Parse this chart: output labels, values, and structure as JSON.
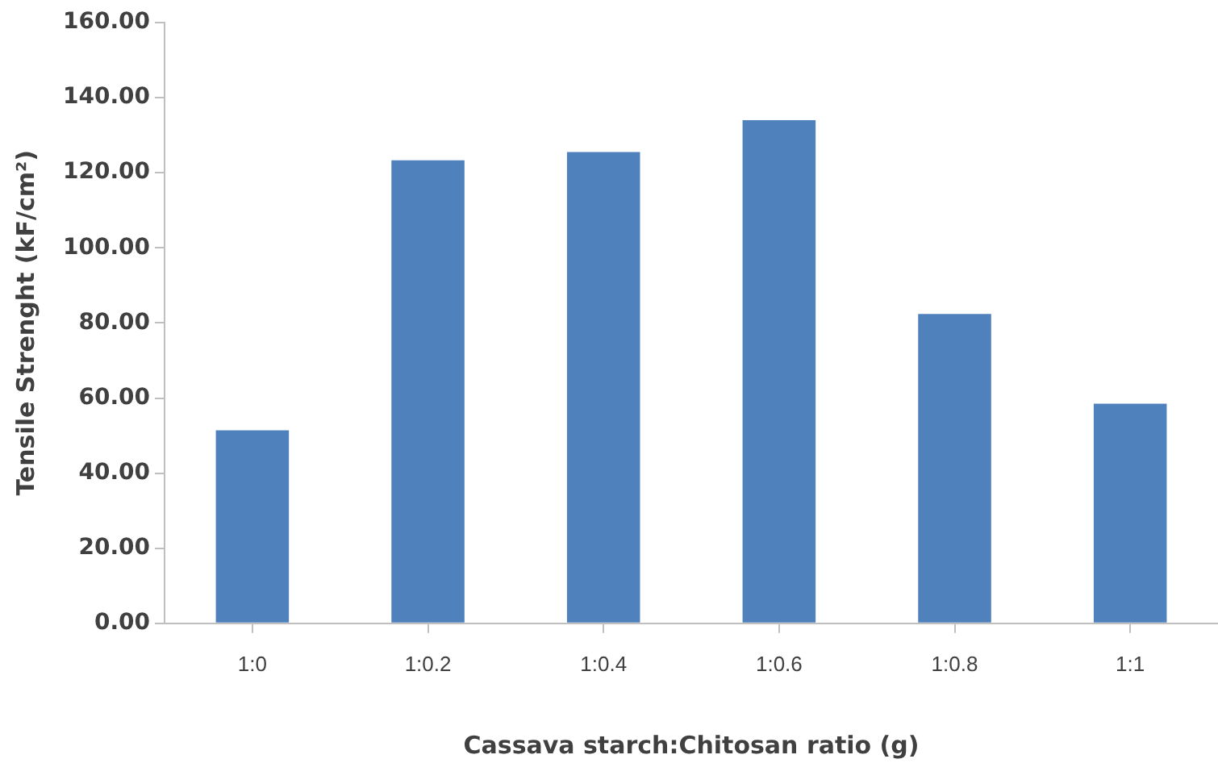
{
  "chart_data": {
    "type": "bar",
    "xlabel": "Cassava starch:Chitosan ratio (g)",
    "ylabel": "Tensile Strenght (kF/cm²)",
    "categories": [
      "1:0",
      "1:0.2",
      "1:0.4",
      "1:0.6",
      "1:0.8",
      "1:1"
    ],
    "values": [
      51.4,
      123.3,
      125.5,
      134.0,
      82.4,
      58.5
    ],
    "color": "#4f81bd",
    "ylim": [
      0,
      160
    ],
    "yticks": [
      {
        "value": 0,
        "label": "0.00"
      },
      {
        "value": 20,
        "label": "20.00"
      },
      {
        "value": 40,
        "label": "40.00"
      },
      {
        "value": 60,
        "label": "60.00"
      },
      {
        "value": 80,
        "label": "80.00"
      },
      {
        "value": 100,
        "label": "100.00"
      },
      {
        "value": 120,
        "label": "120.00"
      },
      {
        "value": 140,
        "label": "140.00"
      },
      {
        "value": 160,
        "label": "160.00"
      }
    ],
    "grid": false,
    "legend": false
  }
}
